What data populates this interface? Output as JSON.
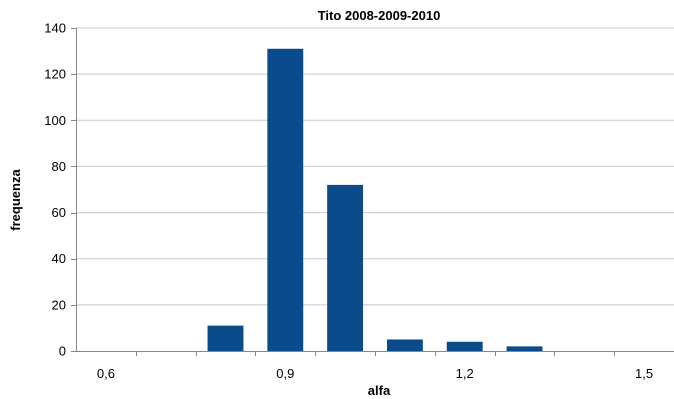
{
  "chart_data": {
    "type": "bar",
    "title": "Tito 2008-2009-2010",
    "xlabel": "alfa",
    "ylabel": "frequenza",
    "ylim": [
      0,
      140
    ],
    "y_ticks": [
      "0",
      "20",
      "40",
      "60",
      "80",
      "100",
      "120",
      "140"
    ],
    "x_ticks": [
      "0,6",
      "0,9",
      "1,2",
      "1,5"
    ],
    "x_tick_positions": [
      0.6,
      0.9,
      1.2,
      1.5
    ],
    "xlim": [
      0.55,
      1.55
    ],
    "bar_width": 0.06,
    "x": [
      0.6,
      0.7,
      0.8,
      0.9,
      1.0,
      1.1,
      1.2,
      1.3,
      1.4,
      1.5
    ],
    "values": [
      0,
      0,
      11,
      131,
      72,
      5,
      4,
      2,
      0,
      0
    ],
    "grid": true,
    "legend": "none",
    "colors": {
      "bar": "#0B4A8B",
      "grid": "#C8C8C8",
      "axis": "#878787"
    }
  }
}
